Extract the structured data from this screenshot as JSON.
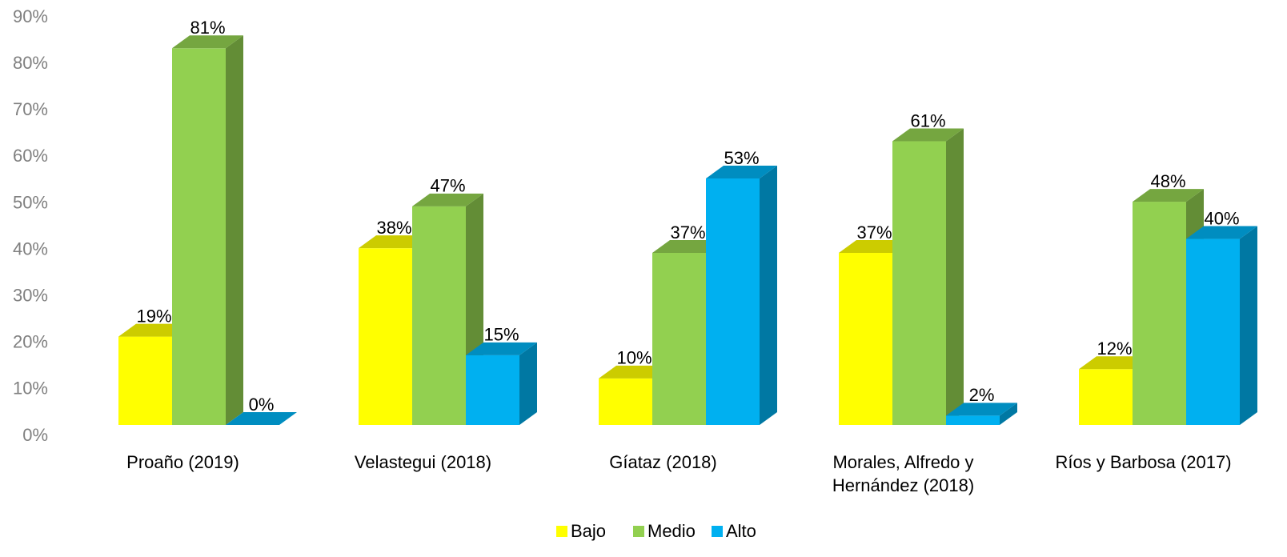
{
  "chart_data": {
    "type": "bar3d",
    "categories": [
      "Proaño (2019)",
      "Velastegui (2018)",
      "Gíataz (2018)",
      "Morales, Alfredo y Hernández (2018)",
      "Ríos y Barbosa (2017)"
    ],
    "series": [
      {
        "name": "Bajo",
        "color": "#ffff00",
        "values": [
          19,
          38,
          10,
          37,
          12
        ],
        "value_labels": [
          "19%",
          "38%",
          "10%",
          "37%",
          "12%"
        ]
      },
      {
        "name": "Medio",
        "color": "#92d050",
        "values": [
          81,
          47,
          37,
          61,
          48
        ],
        "value_labels": [
          "81%",
          "47%",
          "37%",
          "61%",
          "48%"
        ]
      },
      {
        "name": "Alto",
        "color": "#00b0f0",
        "values": [
          0,
          15,
          53,
          2,
          40
        ],
        "value_labels": [
          "0%",
          "15%",
          "53%",
          "2%",
          "40%"
        ]
      }
    ],
    "ylim": [
      0,
      90
    ],
    "yticks": [
      {
        "value": 0,
        "label": "0%"
      },
      {
        "value": 10,
        "label": "10%"
      },
      {
        "value": 20,
        "label": "20%"
      },
      {
        "value": 30,
        "label": "30%"
      },
      {
        "value": 40,
        "label": "40%"
      },
      {
        "value": 50,
        "label": "50%"
      },
      {
        "value": 60,
        "label": "60%"
      },
      {
        "value": 70,
        "label": "70%"
      },
      {
        "value": 80,
        "label": "80%"
      },
      {
        "value": 90,
        "label": "90%"
      }
    ],
    "legend": "bottom"
  }
}
